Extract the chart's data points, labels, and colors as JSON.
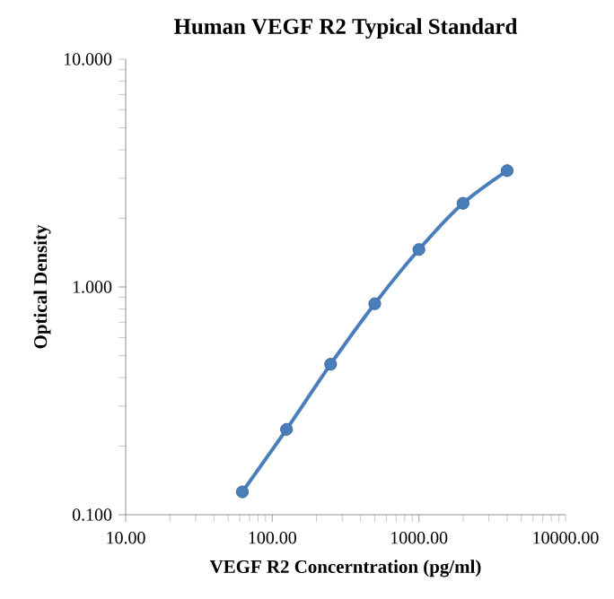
{
  "chart_data": {
    "type": "line",
    "title": "Human VEGF R2 Typical Standard",
    "xlabel": "VEGF R2 Concerntration (pg/ml)",
    "ylabel": "Optical Density",
    "x": [
      62.5,
      125,
      250,
      500,
      1000,
      2000,
      4000
    ],
    "series": [
      {
        "color": "#4a7ebb",
        "values": [
          0.126,
          0.237,
          0.458,
          0.844,
          1.46,
          2.33,
          3.24
        ]
      }
    ],
    "log": "xy",
    "marker": "circle",
    "line_style": "solid",
    "grid": false,
    "xlim": [
      10,
      10000
    ],
    "ylim": [
      0.1,
      10
    ],
    "xticks": [
      {
        "value": 10,
        "label": "10.00"
      },
      {
        "value": 100,
        "label": "100.00"
      },
      {
        "value": 1000,
        "label": "1000.00"
      },
      {
        "value": 10000,
        "label": "10000.00"
      }
    ],
    "yticks": [
      {
        "value": 0.1,
        "label": "0.100"
      },
      {
        "value": 1,
        "label": "1.000"
      },
      {
        "value": 10,
        "label": "10.000"
      }
    ]
  }
}
